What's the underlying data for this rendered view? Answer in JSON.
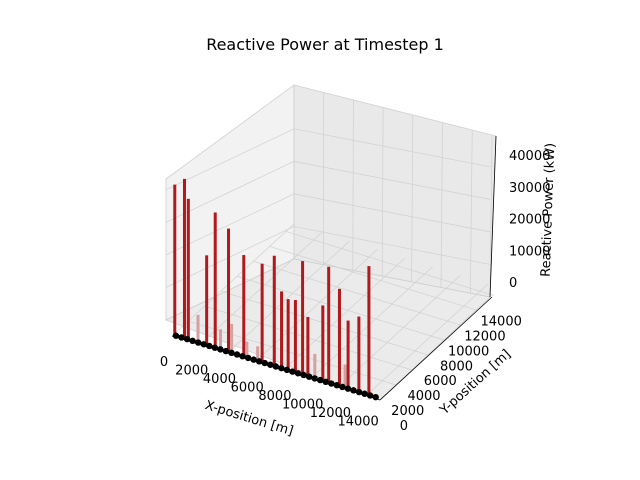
{
  "chart_data": {
    "type": "bar3d",
    "title": "Reactive Power at Timestep 1",
    "xlabel": "X-position [m]",
    "ylabel": "Y-position [m]",
    "zlabel": "Reactive Power (kW)",
    "xlim": [
      0,
      15000
    ],
    "ylim": [
      0,
      15000
    ],
    "zlim": [
      0,
      45000
    ],
    "x_ticks": [
      0,
      2000,
      4000,
      6000,
      8000,
      10000,
      12000,
      14000
    ],
    "y_ticks": [
      0,
      2000,
      4000,
      6000,
      8000,
      10000,
      12000,
      14000
    ],
    "z_ticks": [
      0,
      10000,
      20000,
      30000,
      40000
    ],
    "grid": true,
    "colors": {
      "tall_bar": "#b2191c",
      "short_bar": "#d4a0a0",
      "node": "#000000",
      "pane": "#f2f2f2",
      "grid": "#cccccc"
    },
    "bars": [
      {
        "x": 200,
        "y": 0,
        "q": 35000
      },
      {
        "x": 900,
        "y": 0,
        "q": 37000
      },
      {
        "x": 1000,
        "y": 300,
        "q": 32000
      },
      {
        "x": 2500,
        "y": 0,
        "q": 21000
      },
      {
        "x": 3000,
        "y": 200,
        "q": 31000
      },
      {
        "x": 3900,
        "y": 300,
        "q": 28000
      },
      {
        "x": 4300,
        "y": 0,
        "q": 7000
      },
      {
        "x": 5000,
        "y": 300,
        "q": 23000
      },
      {
        "x": 5400,
        "y": 0,
        "q": 4000
      },
      {
        "x": 6500,
        "y": 0,
        "q": 23000
      },
      {
        "x": 7200,
        "y": 300,
        "q": 25000
      },
      {
        "x": 7900,
        "y": 0,
        "q": 18000
      },
      {
        "x": 8200,
        "y": 300,
        "q": 16000
      },
      {
        "x": 8900,
        "y": 0,
        "q": 17000
      },
      {
        "x": 9300,
        "y": 200,
        "q": 26000
      },
      {
        "x": 9800,
        "y": 0,
        "q": 14000
      },
      {
        "x": 10700,
        "y": 300,
        "q": 17000
      },
      {
        "x": 11300,
        "y": 0,
        "q": 27000
      },
      {
        "x": 11900,
        "y": 300,
        "q": 22000
      },
      {
        "x": 12700,
        "y": 0,
        "q": 16000
      },
      {
        "x": 13300,
        "y": 300,
        "q": 17000
      },
      {
        "x": 14200,
        "y": 0,
        "q": 30000
      },
      {
        "x": 1700,
        "y": 300,
        "q": 6000
      },
      {
        "x": 3500,
        "y": 0,
        "q": 5000
      },
      {
        "x": 6000,
        "y": 300,
        "q": 3000
      },
      {
        "x": 10300,
        "y": 0,
        "q": 6000
      },
      {
        "x": 12300,
        "y": 300,
        "q": 5000
      }
    ]
  }
}
